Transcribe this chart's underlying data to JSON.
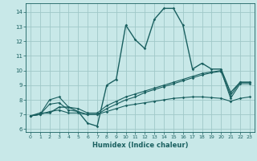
{
  "xlabel": "Humidex (Indice chaleur)",
  "bg_color": "#c8e8e8",
  "grid_color": "#a0c8c8",
  "line_color": "#1a6060",
  "xlim": [
    -0.5,
    23.5
  ],
  "ylim": [
    5.8,
    14.6
  ],
  "yticks": [
    6,
    7,
    8,
    9,
    10,
    11,
    12,
    13,
    14
  ],
  "xticks": [
    0,
    1,
    2,
    3,
    4,
    5,
    6,
    7,
    8,
    9,
    10,
    11,
    12,
    13,
    14,
    15,
    16,
    17,
    18,
    19,
    20,
    21,
    22,
    23
  ],
  "series": [
    {
      "x": [
        0,
        1,
        2,
        3,
        4,
        5,
        6,
        7,
        8,
        9,
        10,
        11,
        12,
        13,
        14,
        15,
        16,
        17,
        18,
        19,
        20,
        21,
        22,
        23
      ],
      "y": [
        6.9,
        7.1,
        7.1,
        7.5,
        7.5,
        7.2,
        6.4,
        6.2,
        9.0,
        9.4,
        13.1,
        12.1,
        11.5,
        13.5,
        14.25,
        14.25,
        13.1,
        10.1,
        10.5,
        10.1,
        10.1,
        8.5,
        9.2,
        9.2
      ]
    },
    {
      "x": [
        0,
        1,
        2,
        3,
        4,
        5,
        6,
        7,
        8,
        9,
        10,
        11,
        12,
        13,
        14,
        15,
        16,
        17,
        18,
        19,
        20,
        21,
        22,
        23
      ],
      "y": [
        6.9,
        7.0,
        8.0,
        8.2,
        7.5,
        7.4,
        7.1,
        7.1,
        7.6,
        7.9,
        8.2,
        8.4,
        8.6,
        8.8,
        9.0,
        9.2,
        9.4,
        9.6,
        9.8,
        9.9,
        10.0,
        8.1,
        9.1,
        9.1
      ]
    },
    {
      "x": [
        0,
        1,
        2,
        3,
        4,
        5,
        6,
        7,
        8,
        9,
        10,
        11,
        12,
        13,
        14,
        15,
        16,
        17,
        18,
        19,
        20,
        21,
        22,
        23
      ],
      "y": [
        6.9,
        7.0,
        7.7,
        7.8,
        7.3,
        7.2,
        7.0,
        7.0,
        7.4,
        7.7,
        8.0,
        8.2,
        8.5,
        8.7,
        8.9,
        9.1,
        9.3,
        9.5,
        9.7,
        9.85,
        9.95,
        8.3,
        9.2,
        9.2
      ]
    },
    {
      "x": [
        0,
        1,
        2,
        3,
        4,
        5,
        6,
        7,
        8,
        9,
        10,
        11,
        12,
        13,
        14,
        15,
        16,
        17,
        18,
        19,
        20,
        21,
        22,
        23
      ],
      "y": [
        6.9,
        7.0,
        7.2,
        7.3,
        7.1,
        7.1,
        7.0,
        7.0,
        7.2,
        7.4,
        7.6,
        7.7,
        7.8,
        7.9,
        8.0,
        8.1,
        8.15,
        8.2,
        8.2,
        8.15,
        8.1,
        7.9,
        8.1,
        8.2
      ]
    }
  ]
}
